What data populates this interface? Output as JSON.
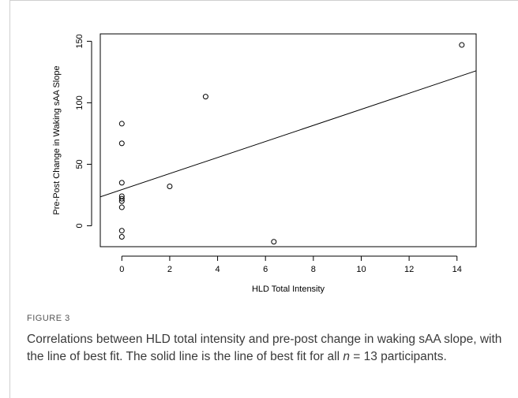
{
  "chart_data": {
    "type": "scatter",
    "title": "",
    "xlabel": "HLD Total Intensity",
    "ylabel": "Pre-Post Change in Waking sAA Slope",
    "xlim": [
      -0.9,
      14.8
    ],
    "ylim": [
      -17,
      156
    ],
    "xticks": [
      0,
      2,
      4,
      6,
      8,
      10,
      12,
      14
    ],
    "yticks": [
      0,
      50,
      100,
      150
    ],
    "points": [
      {
        "x": 0,
        "y": 83
      },
      {
        "x": 0,
        "y": 67
      },
      {
        "x": 0,
        "y": 35
      },
      {
        "x": 0,
        "y": 24
      },
      {
        "x": 0,
        "y": 22
      },
      {
        "x": 0,
        "y": 20
      },
      {
        "x": 0,
        "y": 15
      },
      {
        "x": 0,
        "y": -4
      },
      {
        "x": 0,
        "y": -9
      },
      {
        "x": 2,
        "y": 32
      },
      {
        "x": 3.5,
        "y": 105
      },
      {
        "x": 6.35,
        "y": -13
      },
      {
        "x": 14.2,
        "y": 147
      }
    ],
    "fit_line": {
      "x": [
        -0.9,
        14.8
      ],
      "y": [
        23.5,
        126
      ]
    },
    "grid": false,
    "legend": "none"
  },
  "figure": {
    "label": "FIGURE 3",
    "caption_before_n": "Correlations between HLD total intensity and pre-post change in waking sAA slope, with the line of best fit. The solid line is the line of best fit for all ",
    "caption_n": "n",
    "caption_after_n": " = 13 participants."
  }
}
